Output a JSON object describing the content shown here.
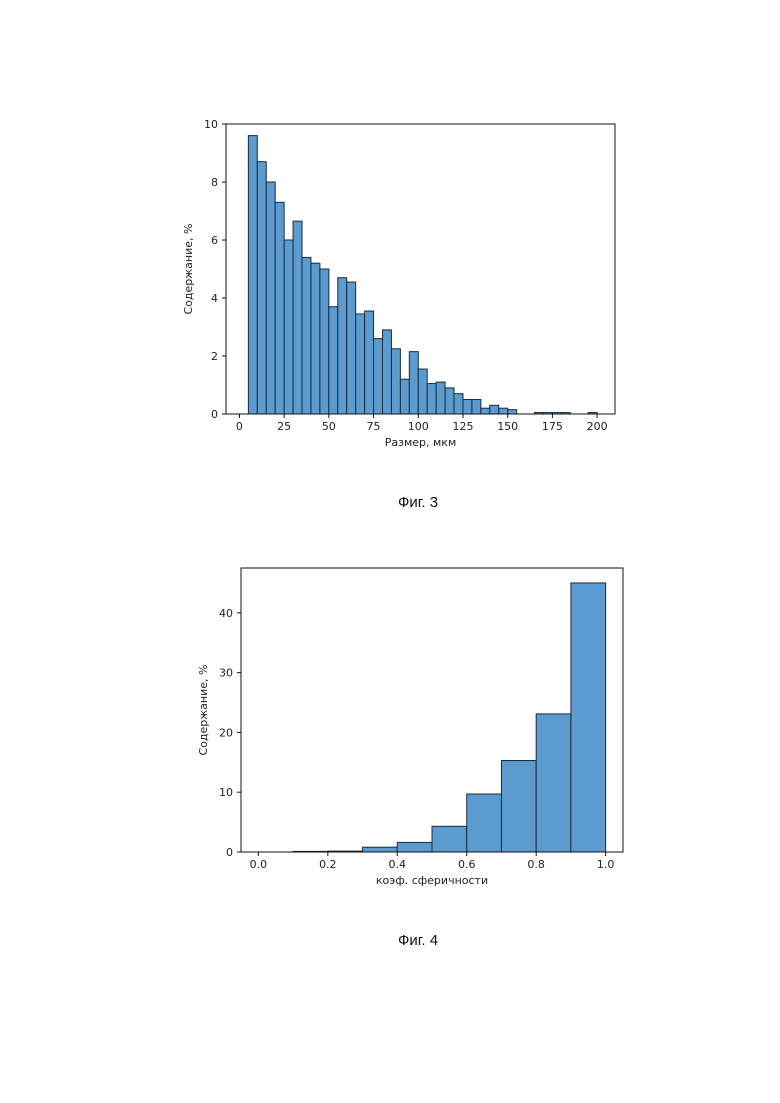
{
  "figures": [
    {
      "caption": "Фиг. 3",
      "chart_data": {
        "type": "bar",
        "title": "",
        "xlabel": "Размер, мкм",
        "ylabel": "Содержание, %",
        "xlim": [
          -7.5,
          210
        ],
        "ylim": [
          0,
          10
        ],
        "xticks": [
          "0",
          "25",
          "50",
          "75",
          "100",
          "125",
          "150",
          "175",
          "200"
        ],
        "xtick_values": [
          0,
          25,
          50,
          75,
          100,
          125,
          150,
          175,
          200
        ],
        "yticks": [
          "0",
          "2",
          "4",
          "6",
          "8",
          "10"
        ],
        "ytick_values": [
          0,
          2,
          4,
          6,
          8,
          10
        ],
        "bin_width": 5,
        "bins": [
          {
            "x0": 5,
            "value": 9.6
          },
          {
            "x0": 10,
            "value": 8.7
          },
          {
            "x0": 15,
            "value": 8.0
          },
          {
            "x0": 20,
            "value": 7.3
          },
          {
            "x0": 25,
            "value": 6.0
          },
          {
            "x0": 30,
            "value": 6.65
          },
          {
            "x0": 35,
            "value": 5.4
          },
          {
            "x0": 40,
            "value": 5.2
          },
          {
            "x0": 45,
            "value": 5.0
          },
          {
            "x0": 50,
            "value": 3.7
          },
          {
            "x0": 55,
            "value": 4.7
          },
          {
            "x0": 60,
            "value": 4.55
          },
          {
            "x0": 65,
            "value": 3.45
          },
          {
            "x0": 70,
            "value": 3.55
          },
          {
            "x0": 75,
            "value": 2.6
          },
          {
            "x0": 80,
            "value": 2.9
          },
          {
            "x0": 85,
            "value": 2.25
          },
          {
            "x0": 90,
            "value": 1.2
          },
          {
            "x0": 95,
            "value": 2.15
          },
          {
            "x0": 100,
            "value": 1.55
          },
          {
            "x0": 105,
            "value": 1.05
          },
          {
            "x0": 110,
            "value": 1.1
          },
          {
            "x0": 115,
            "value": 0.9
          },
          {
            "x0": 120,
            "value": 0.7
          },
          {
            "x0": 125,
            "value": 0.5
          },
          {
            "x0": 130,
            "value": 0.5
          },
          {
            "x0": 135,
            "value": 0.2
          },
          {
            "x0": 140,
            "value": 0.3
          },
          {
            "x0": 145,
            "value": 0.2
          },
          {
            "x0": 150,
            "value": 0.15
          },
          {
            "x0": 165,
            "value": 0.05
          },
          {
            "x0": 170,
            "value": 0.05
          },
          {
            "x0": 175,
            "value": 0.05
          },
          {
            "x0": 180,
            "value": 0.05
          },
          {
            "x0": 195,
            "value": 0.05
          }
        ],
        "bar_color": "#5b9bd0",
        "edge_color": "#1b2a38",
        "grid": false
      }
    },
    {
      "caption": "Фиг. 4",
      "chart_data": {
        "type": "bar",
        "title": "",
        "xlabel": "коэф. сферичности",
        "ylabel": "Содержание, %",
        "xlim": [
          -0.05,
          1.05
        ],
        "ylim": [
          0,
          47.5
        ],
        "xticks": [
          "0.0",
          "0.2",
          "0.4",
          "0.6",
          "0.8",
          "1.0"
        ],
        "xtick_values": [
          0.0,
          0.2,
          0.4,
          0.6,
          0.8,
          1.0
        ],
        "yticks": [
          "0",
          "10",
          "20",
          "30",
          "40"
        ],
        "ytick_values": [
          0,
          10,
          20,
          30,
          40
        ],
        "bin_width": 0.1,
        "bins": [
          {
            "x0": 0.1,
            "value": 0.1
          },
          {
            "x0": 0.2,
            "value": 0.15
          },
          {
            "x0": 0.3,
            "value": 0.8
          },
          {
            "x0": 0.4,
            "value": 1.6
          },
          {
            "x0": 0.5,
            "value": 4.3
          },
          {
            "x0": 0.6,
            "value": 9.7
          },
          {
            "x0": 0.7,
            "value": 15.3
          },
          {
            "x0": 0.8,
            "value": 23.1
          },
          {
            "x0": 0.9,
            "value": 45.0
          }
        ],
        "bar_color": "#5b9bd0",
        "edge_color": "#1b2a38",
        "grid": false
      }
    }
  ]
}
